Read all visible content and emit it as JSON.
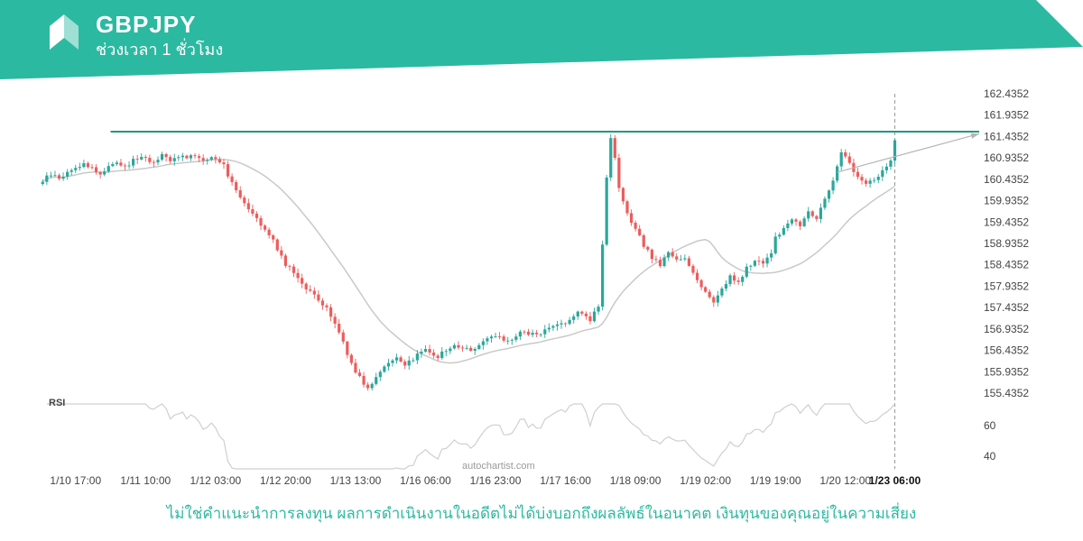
{
  "header": {
    "symbol": "GBPJPY",
    "timeframe_label": "ช่วงเวลา 1 ชั่วโมง",
    "background_color": "#2cb9a1"
  },
  "watermark": "autochartist.com",
  "footer": {
    "disclaimer": "ไม่ใช่คำแนะนำการลงทุน ผลการดำเนินงานในอดีตไม่ได้บ่งบอกถึงผลลัพธ์ในอนาคต เงินทุนของคุณอยู่ในความเสี่ยง",
    "color": "#2cb9a1"
  },
  "chart_data": {
    "type": "candlestick",
    "symbol": "GBPJPY",
    "interval": "1 hour",
    "grid": false,
    "legend_position": "none",
    "y_axis_labels": [
      "162.4352",
      "161.9352",
      "161.4352",
      "160.9352",
      "160.4352",
      "159.9352",
      "159.4352",
      "158.9352",
      "158.4352",
      "157.9352",
      "157.4352",
      "156.9352",
      "156.4352",
      "155.9352",
      "155.4352"
    ],
    "y_range": [
      155.4352,
      162.4352
    ],
    "x_labels": [
      "1/10 17:00",
      "1/11 10:00",
      "1/12 03:00",
      "1/12 20:00",
      "1/13 13:00",
      "1/16 06:00",
      "1/16 23:00",
      "1/17 16:00",
      "1/18 09:00",
      "1/19 02:00",
      "1/19 19:00",
      "1/20 12:00",
      "1/23 06:00"
    ],
    "x_label_indices": [
      8,
      25,
      42,
      59,
      76,
      93,
      110,
      127,
      144,
      161,
      178,
      195,
      207
    ],
    "num_candles": 208,
    "x_domain_max": 228,
    "noise_amplitude": 0.05,
    "close_waypoints": [
      [
        0,
        160.4
      ],
      [
        2,
        160.55
      ],
      [
        4,
        160.45
      ],
      [
        6,
        160.6
      ],
      [
        8,
        160.7
      ],
      [
        10,
        160.8
      ],
      [
        12,
        160.7
      ],
      [
        14,
        160.55
      ],
      [
        16,
        160.75
      ],
      [
        18,
        160.85
      ],
      [
        20,
        160.7
      ],
      [
        22,
        160.9
      ],
      [
        25,
        160.95
      ],
      [
        27,
        160.8
      ],
      [
        29,
        161.0
      ],
      [
        31,
        160.85
      ],
      [
        33,
        161.0
      ],
      [
        35,
        160.9
      ],
      [
        37,
        161.0
      ],
      [
        39,
        160.9
      ],
      [
        42,
        160.95
      ],
      [
        44,
        160.75
      ],
      [
        45,
        160.55
      ],
      [
        47,
        160.2
      ],
      [
        49,
        159.9
      ],
      [
        52,
        159.55
      ],
      [
        54,
        159.25
      ],
      [
        56,
        159.0
      ],
      [
        59,
        158.45
      ],
      [
        62,
        158.15
      ],
      [
        64,
        157.9
      ],
      [
        66,
        157.7
      ],
      [
        69,
        157.4
      ],
      [
        72,
        156.9
      ],
      [
        74,
        156.35
      ],
      [
        76,
        155.95
      ],
      [
        79,
        155.55
      ],
      [
        81,
        155.8
      ],
      [
        83,
        156.1
      ],
      [
        86,
        156.25
      ],
      [
        88,
        156.05
      ],
      [
        91,
        156.35
      ],
      [
        93,
        156.45
      ],
      [
        96,
        156.3
      ],
      [
        100,
        156.55
      ],
      [
        104,
        156.45
      ],
      [
        108,
        156.7
      ],
      [
        110,
        156.75
      ],
      [
        113,
        156.65
      ],
      [
        116,
        156.85
      ],
      [
        120,
        156.8
      ],
      [
        124,
        157.0
      ],
      [
        127,
        157.1
      ],
      [
        130,
        157.3
      ],
      [
        133,
        157.15
      ],
      [
        135,
        157.5
      ],
      [
        136,
        158.9
      ],
      [
        137,
        160.5
      ],
      [
        138,
        161.35
      ],
      [
        139,
        160.9
      ],
      [
        140,
        160.2
      ],
      [
        141,
        159.9
      ],
      [
        142,
        159.6
      ],
      [
        144,
        159.25
      ],
      [
        146,
        158.9
      ],
      [
        148,
        158.6
      ],
      [
        150,
        158.45
      ],
      [
        152,
        158.7
      ],
      [
        154,
        158.55
      ],
      [
        156,
        158.6
      ],
      [
        158,
        158.25
      ],
      [
        160,
        157.95
      ],
      [
        161,
        157.8
      ],
      [
        163,
        157.55
      ],
      [
        165,
        157.9
      ],
      [
        167,
        158.15
      ],
      [
        169,
        158.0
      ],
      [
        171,
        158.35
      ],
      [
        173,
        158.55
      ],
      [
        175,
        158.45
      ],
      [
        177,
        158.75
      ],
      [
        178,
        159.05
      ],
      [
        180,
        159.3
      ],
      [
        182,
        159.5
      ],
      [
        184,
        159.35
      ],
      [
        186,
        159.65
      ],
      [
        188,
        159.55
      ],
      [
        190,
        159.95
      ],
      [
        192,
        160.4
      ],
      [
        194,
        161.1
      ],
      [
        196,
        160.8
      ],
      [
        198,
        160.5
      ],
      [
        200,
        160.35
      ],
      [
        202,
        160.45
      ],
      [
        204,
        160.6
      ],
      [
        206,
        160.9
      ],
      [
        207,
        161.3
      ]
    ],
    "resistance_line": {
      "price": 161.55,
      "start_index": 17,
      "color": "#1f9a83"
    },
    "vertical_dashed_line_index": 207,
    "trend_arrow": {
      "from_index": 193,
      "from_price": 160.6,
      "to_price": 161.5,
      "color": "#b5b5b5"
    },
    "moving_average": {
      "period": 26,
      "color": "#c9c9c9"
    },
    "rsi": {
      "label": "RSI",
      "period": 14,
      "levels": [
        60,
        40
      ],
      "axis_labels": [
        "60",
        "40"
      ],
      "color": "#cfcfcf"
    },
    "colors": {
      "up": "#2aa79b",
      "down": "#ee5c5c",
      "axis_text": "#444444",
      "last_label": "#111111"
    }
  }
}
